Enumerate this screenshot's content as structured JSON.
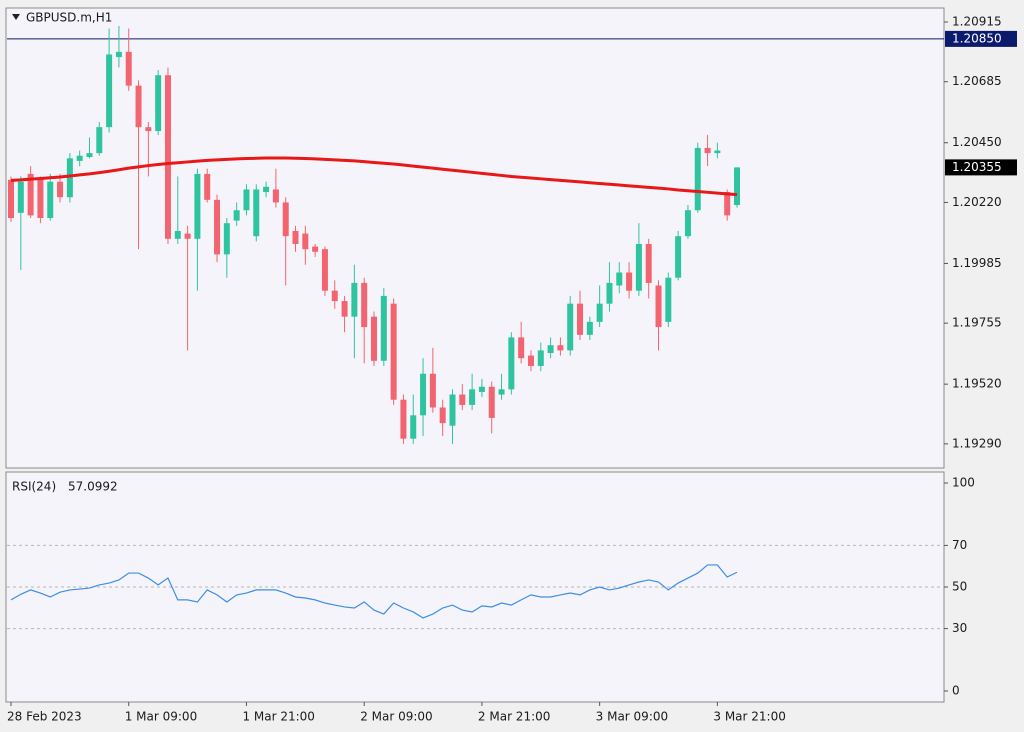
{
  "chart_data": [
    {
      "type": "candlestick",
      "title": "GBPUSD.m,H1",
      "categories": [
        "28 Feb 2023",
        null,
        null,
        null,
        null,
        null,
        null,
        null,
        null,
        null,
        null,
        null,
        "1 Mar 09:00",
        null,
        null,
        null,
        null,
        null,
        null,
        null,
        null,
        null,
        null,
        null,
        "1 Mar 21:00",
        null,
        null,
        null,
        null,
        null,
        null,
        null,
        null,
        null,
        null,
        null,
        "2 Mar 09:00",
        null,
        null,
        null,
        null,
        null,
        null,
        null,
        null,
        null,
        null,
        null,
        "2 Mar 21:00",
        null,
        null,
        null,
        null,
        null,
        null,
        null,
        null,
        null,
        null,
        null,
        "3 Mar 09:00",
        null,
        null,
        null,
        null,
        null,
        null,
        null,
        null,
        null,
        null,
        null,
        "3 Mar 21:00",
        null,
        null
      ],
      "open": [
        1.20307,
        1.2018,
        1.2033,
        1.2031,
        1.2016,
        1.203,
        1.2024,
        1.2038,
        1.20395,
        1.2041,
        1.2051,
        1.2078,
        1.208,
        1.2067,
        1.2051,
        1.20495,
        1.2071,
        1.2008,
        1.201,
        1.2008,
        1.2033,
        1.2023,
        1.2002,
        1.2015,
        1.2019,
        1.2009,
        1.2026,
        1.2027,
        1.2022,
        1.2011,
        1.201,
        1.2005,
        1.2004,
        1.1988,
        1.1984,
        1.1978,
        1.1991,
        1.1978,
        1.1961,
        1.1983,
        1.1946,
        1.1931,
        1.194,
        1.1956,
        1.1943,
        1.1936,
        1.1948,
        1.1944,
        1.1949,
        1.1951,
        1.1948,
        1.195,
        1.197,
        1.1963,
        1.1959,
        1.1964,
        1.1967,
        1.1965,
        1.1983,
        1.1971,
        1.1976,
        1.1983,
        1.199,
        1.1995,
        1.1988,
        1.2006,
        1.199,
        1.1976,
        1.1993,
        1.2009,
        1.2019,
        1.2043,
        1.2041,
        1.2026,
        1.2021
      ],
      "high": [
        1.2032,
        1.2032,
        1.2036,
        1.2032,
        1.2033,
        1.2033,
        1.2041,
        1.2042,
        1.2047,
        1.2053,
        1.2089,
        1.209,
        1.2089,
        1.2069,
        1.2053,
        1.2073,
        1.2074,
        1.2032,
        1.2013,
        1.2035,
        1.2035,
        1.2025,
        1.2016,
        1.2022,
        1.2029,
        1.2029,
        1.203,
        1.2035,
        1.2024,
        1.2013,
        1.2013,
        1.2006,
        1.2005,
        1.1992,
        1.1986,
        1.1998,
        1.1993,
        1.198,
        1.1989,
        1.1985,
        1.1948,
        1.1948,
        1.1962,
        1.1966,
        1.1946,
        1.195,
        1.1952,
        1.1956,
        1.1954,
        1.1953,
        1.1956,
        1.1972,
        1.1976,
        1.1965,
        1.1968,
        1.197,
        1.197,
        1.1986,
        1.1988,
        1.1978,
        1.199,
        1.1999,
        1.1999,
        1.1999,
        1.2014,
        1.2008,
        1.1992,
        1.1995,
        1.2011,
        1.2021,
        1.2045,
        1.2048,
        1.2045,
        1.2027,
        1.20355
      ],
      "low": [
        1.20145,
        1.1996,
        1.2016,
        1.2014,
        1.2015,
        1.2022,
        1.2022,
        1.2036,
        1.2039,
        1.204,
        1.2049,
        1.2074,
        1.2065,
        1.2004,
        1.2032,
        1.2048,
        1.2006,
        1.2006,
        1.1965,
        1.1988,
        1.2022,
        1.1999,
        1.1993,
        1.2013,
        1.2017,
        1.2007,
        1.2024,
        1.202,
        1.199,
        1.2003,
        1.1998,
        1.2001,
        1.1986,
        1.1981,
        1.1972,
        1.1962,
        1.196,
        1.1959,
        1.1959,
        1.1944,
        1.1929,
        1.1929,
        1.1932,
        1.1941,
        1.1932,
        1.1929,
        1.1942,
        1.1942,
        1.1947,
        1.1933,
        1.1946,
        1.1948,
        1.196,
        1.1957,
        1.1957,
        1.1962,
        1.1963,
        1.1963,
        1.1969,
        1.1969,
        1.1974,
        1.198,
        1.1987,
        1.1985,
        1.1986,
        1.1985,
        1.1965,
        1.1974,
        1.1992,
        1.2008,
        1.2018,
        1.2036,
        1.2039,
        1.2015,
        1.202
      ],
      "close": [
        1.2016,
        1.203,
        1.2017,
        1.2016,
        1.203,
        1.2024,
        1.2039,
        1.204,
        1.2041,
        1.2051,
        1.2079,
        1.208,
        1.2067,
        1.2051,
        1.20495,
        1.2071,
        1.2008,
        1.2011,
        1.2008,
        1.2033,
        1.2023,
        1.2002,
        1.2014,
        1.2019,
        1.2027,
        1.2027,
        1.2028,
        1.2022,
        1.2009,
        1.2006,
        1.2004,
        1.2003,
        1.1988,
        1.1984,
        1.1978,
        1.1991,
        1.1974,
        1.1961,
        1.1986,
        1.1946,
        1.1931,
        1.194,
        1.1956,
        1.1943,
        1.1937,
        1.1948,
        1.1944,
        1.195,
        1.1951,
        1.1939,
        1.195,
        1.197,
        1.1962,
        1.1959,
        1.1965,
        1.1967,
        1.1965,
        1.1983,
        1.1971,
        1.1976,
        1.1983,
        1.1991,
        1.1995,
        1.1988,
        1.2006,
        1.1991,
        1.1974,
        1.1993,
        1.2009,
        1.2019,
        1.2043,
        1.2041,
        1.2042,
        1.2017,
        1.20355
      ],
      "up_color": "#2ec4a0",
      "down_color": "#f2646f",
      "series": [
        {
          "color": "#e81818",
          "values": [
            1.20305,
            1.20307,
            1.2031,
            1.20312,
            1.20315,
            1.20318,
            1.20322,
            1.20326,
            1.2033,
            1.20335,
            1.2034,
            1.20346,
            1.20352,
            1.20357,
            1.20362,
            1.20366,
            1.2037,
            1.20373,
            1.20376,
            1.20379,
            1.20382,
            1.20384,
            1.20386,
            1.20388,
            1.20389,
            1.2039,
            1.20391,
            1.20391,
            1.20391,
            1.2039,
            1.20389,
            1.20388,
            1.20386,
            1.20384,
            1.20382,
            1.2038,
            1.20377,
            1.20374,
            1.20371,
            1.20368,
            1.20364,
            1.2036,
            1.20356,
            1.20352,
            1.20348,
            1.20344,
            1.2034,
            1.20336,
            1.20332,
            1.20328,
            1.20324,
            1.2032,
            1.20317,
            1.20314,
            1.20311,
            1.20308,
            1.20305,
            1.20302,
            1.20299,
            1.20296,
            1.20293,
            1.2029,
            1.20287,
            1.20284,
            1.20281,
            1.20278,
            1.20275,
            1.20272,
            1.20268,
            1.20265,
            1.20262,
            1.20259,
            1.20256,
            1.20253,
            1.2025
          ]
        }
      ],
      "ylim": [
        1.19197,
        1.20969
      ],
      "yticks": [
        1.20915,
        1.20685,
        {
          "value": 1.2045,
          "label": "1.20450"
        },
        {
          "value": 1.2022,
          "label": "1.20220"
        },
        1.19985,
        1.19755,
        {
          "value": 1.1952,
          "label": "1.19520"
        },
        {
          "value": 1.1929,
          "label": "1.19290"
        }
      ],
      "price_line": {
        "value": 1.2085,
        "label": "1.20850",
        "color": "#0c1a6e"
      },
      "current_price": {
        "value": 1.20355,
        "label": "1.20355",
        "color": "#000000"
      }
    },
    {
      "type": "line",
      "title": "RSI(24)",
      "series": [
        {
          "color": "#3d8ee8",
          "values": [
            43.8,
            46.5,
            48.6,
            47.1,
            45.2,
            47.5,
            48.6,
            49.0,
            49.5,
            51.0,
            51.9,
            53.4,
            56.7,
            56.7,
            54.3,
            51.0,
            54.3,
            43.8,
            43.8,
            42.8,
            48.6,
            46.2,
            42.8,
            46.2,
            47.1,
            48.6,
            48.6,
            48.6,
            47.1,
            45.2,
            44.7,
            43.8,
            42.3,
            41.3,
            40.4,
            39.9,
            42.8,
            38.9,
            37.0,
            42.3,
            39.9,
            38.0,
            35.1,
            37.0,
            39.9,
            41.3,
            38.9,
            38.0,
            40.9,
            40.4,
            42.3,
            41.3,
            43.8,
            46.2,
            45.2,
            45.2,
            46.2,
            47.1,
            46.2,
            48.6,
            50.0,
            48.6,
            49.5,
            51.0,
            52.4,
            53.4,
            52.4,
            48.6,
            51.9,
            54.3,
            56.7,
            60.6,
            60.6,
            54.8,
            57.0992
          ]
        }
      ],
      "ylim": [
        -5.3,
        105.3
      ],
      "yticks": [
        100,
        70,
        50,
        30,
        0
      ],
      "grid": true
    }
  ]
}
